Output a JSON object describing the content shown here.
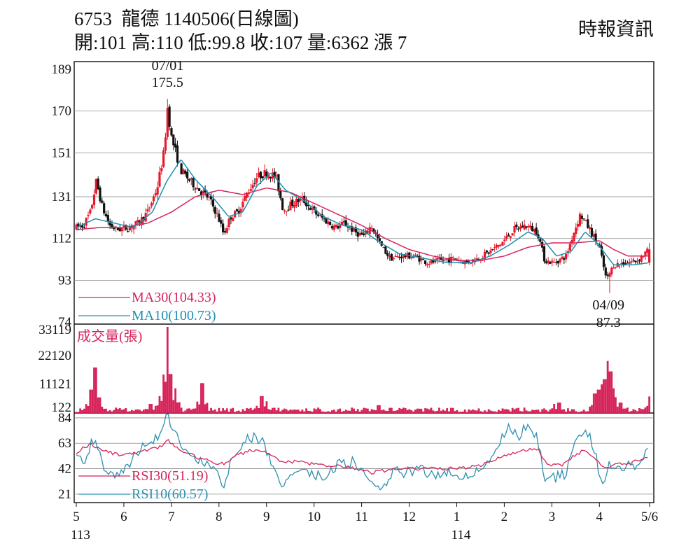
{
  "header": {
    "code": "6753",
    "name": "龍德",
    "date": "1140506",
    "chart_kind": "(日線圖)",
    "source": "時報資訊",
    "stats": [
      {
        "label": "開",
        "value": "101"
      },
      {
        "label": "高",
        "value": "110"
      },
      {
        "label": "低",
        "value": "99.8"
      },
      {
        "label": "收",
        "value": "107"
      },
      {
        "label": "量",
        "value": "6362"
      },
      {
        "label": "漲",
        "value": "7"
      }
    ]
  },
  "colors": {
    "up": "#e8192c",
    "down": "#111111",
    "ma30": "#d6245a",
    "ma10": "#1e90b4",
    "volume": "#d6245a",
    "rsi30": "#d6245a",
    "rsi10": "#2c8fb0",
    "grid": "#8a8a8a"
  },
  "chart_data": [
    {
      "type": "candlestick",
      "name": "price",
      "ylim": [
        74,
        189
      ],
      "yticks": [
        189,
        170,
        151,
        131,
        112,
        93,
        74
      ],
      "grid": true,
      "legend": [
        {
          "key": "ma30",
          "label": "MA30(104.33)"
        },
        {
          "key": "ma10",
          "label": "MA10(100.73)"
        }
      ],
      "annotations": [
        {
          "date_label": "07/01",
          "value_label": "175.5",
          "month_index": 1.92,
          "value": 175.5
        },
        {
          "date_label": "04/09",
          "value_label": "87.3",
          "month_index": 11.22,
          "value": 87.3
        }
      ],
      "last_bar": {
        "open": 101,
        "high": 110,
        "low": 99.8,
        "close": 107
      },
      "price_path": [
        [
          0.0,
          117
        ],
        [
          0.15,
          118
        ],
        [
          0.3,
          124
        ],
        [
          0.42,
          138
        ],
        [
          0.55,
          126
        ],
        [
          0.7,
          118
        ],
        [
          0.85,
          116
        ],
        [
          1.1,
          117
        ],
        [
          1.3,
          119
        ],
        [
          1.5,
          124
        ],
        [
          1.7,
          135
        ],
        [
          1.85,
          152
        ],
        [
          1.92,
          172
        ],
        [
          2.0,
          158
        ],
        [
          2.2,
          143
        ],
        [
          2.4,
          138
        ],
        [
          2.6,
          134
        ],
        [
          2.8,
          130
        ],
        [
          2.98,
          122
        ],
        [
          3.1,
          114
        ],
        [
          3.25,
          122
        ],
        [
          3.4,
          124
        ],
        [
          3.6,
          133
        ],
        [
          3.8,
          140
        ],
        [
          4.0,
          142
        ],
        [
          4.2,
          140
        ],
        [
          4.35,
          125
        ],
        [
          4.55,
          128
        ],
        [
          4.75,
          130
        ],
        [
          5.0,
          124
        ],
        [
          5.25,
          120
        ],
        [
          5.45,
          117
        ],
        [
          5.65,
          119
        ],
        [
          5.85,
          115
        ],
        [
          6.05,
          113
        ],
        [
          6.2,
          118
        ],
        [
          6.4,
          109
        ],
        [
          6.6,
          103
        ],
        [
          6.85,
          104
        ],
        [
          7.1,
          104
        ],
        [
          7.4,
          101
        ],
        [
          7.7,
          102
        ],
        [
          8.0,
          103
        ],
        [
          8.2,
          101
        ],
        [
          8.45,
          103
        ],
        [
          8.7,
          106
        ],
        [
          8.95,
          110
        ],
        [
          9.2,
          116
        ],
        [
          9.45,
          118
        ],
        [
          9.7,
          115
        ],
        [
          9.85,
          102
        ],
        [
          10.05,
          101
        ],
        [
          10.3,
          104
        ],
        [
          10.45,
          114
        ],
        [
          10.6,
          123
        ],
        [
          10.8,
          116
        ],
        [
          11.0,
          108
        ],
        [
          11.15,
          93
        ],
        [
          11.3,
          100
        ],
        [
          11.55,
          101
        ],
        [
          11.8,
          102
        ],
        [
          12.05,
          107
        ]
      ],
      "ma10_path": [
        [
          0.0,
          117
        ],
        [
          0.4,
          121
        ],
        [
          0.8,
          119
        ],
        [
          1.2,
          117
        ],
        [
          1.6,
          124
        ],
        [
          1.9,
          138
        ],
        [
          2.2,
          148
        ],
        [
          2.5,
          139
        ],
        [
          2.9,
          130
        ],
        [
          3.2,
          122
        ],
        [
          3.5,
          124
        ],
        [
          3.8,
          136
        ],
        [
          4.1,
          142
        ],
        [
          4.4,
          134
        ],
        [
          4.8,
          129
        ],
        [
          5.2,
          122
        ],
        [
          5.6,
          118
        ],
        [
          6.0,
          116
        ],
        [
          6.4,
          110
        ],
        [
          6.8,
          105
        ],
        [
          7.3,
          103
        ],
        [
          7.8,
          101
        ],
        [
          8.3,
          101
        ],
        [
          8.7,
          104
        ],
        [
          9.1,
          109
        ],
        [
          9.5,
          115
        ],
        [
          9.8,
          112
        ],
        [
          10.1,
          104
        ],
        [
          10.4,
          106
        ],
        [
          10.7,
          115
        ],
        [
          10.95,
          110
        ],
        [
          11.3,
          100
        ],
        [
          11.7,
          100
        ],
        [
          12.05,
          101
        ]
      ],
      "ma30_path": [
        [
          0.0,
          116
        ],
        [
          0.5,
          117
        ],
        [
          1.0,
          117
        ],
        [
          1.5,
          119
        ],
        [
          2.0,
          124
        ],
        [
          2.5,
          131
        ],
        [
          3.0,
          134
        ],
        [
          3.5,
          132
        ],
        [
          4.0,
          135
        ],
        [
          4.5,
          133
        ],
        [
          5.0,
          128
        ],
        [
          5.5,
          123
        ],
        [
          6.0,
          118
        ],
        [
          6.5,
          112
        ],
        [
          7.0,
          107
        ],
        [
          7.5,
          104
        ],
        [
          8.0,
          102
        ],
        [
          8.5,
          102
        ],
        [
          9.0,
          104
        ],
        [
          9.5,
          108
        ],
        [
          10.0,
          110
        ],
        [
          10.5,
          110
        ],
        [
          11.0,
          111
        ],
        [
          11.3,
          107
        ],
        [
          11.6,
          104
        ],
        [
          12.05,
          104
        ]
      ]
    },
    {
      "type": "bar",
      "name": "volume",
      "title": "成交量(張)",
      "ylim": [
        0,
        33119
      ],
      "yticks": [
        33119,
        22120,
        11121,
        122
      ],
      "spikes": [
        [
          0.4,
          17500
        ],
        [
          0.32,
          9000
        ],
        [
          0.48,
          6000
        ],
        [
          1.55,
          3500
        ],
        [
          1.75,
          6500
        ],
        [
          1.85,
          12000
        ],
        [
          1.92,
          33119
        ],
        [
          1.99,
          15000
        ],
        [
          2.08,
          9500
        ],
        [
          2.65,
          11500
        ],
        [
          3.9,
          6500
        ],
        [
          4.0,
          4500
        ],
        [
          6.35,
          3000
        ],
        [
          6.6,
          2000
        ],
        [
          10.05,
          3500
        ],
        [
          10.15,
          4000
        ],
        [
          10.9,
          7500
        ],
        [
          10.98,
          9000
        ],
        [
          11.05,
          11000
        ],
        [
          11.12,
          13000
        ],
        [
          11.18,
          20000
        ],
        [
          11.24,
          16000
        ],
        [
          11.3,
          9500
        ],
        [
          11.45,
          4000
        ],
        [
          12.05,
          6362
        ]
      ]
    },
    {
      "type": "line",
      "name": "rsi",
      "ylim": [
        14,
        88
      ],
      "yticks": [
        84,
        63,
        42,
        21
      ],
      "legend": [
        {
          "key": "rsi30",
          "label": "RSI30(51.19)"
        },
        {
          "key": "rsi10",
          "label": "RSI10(60.57)"
        }
      ],
      "rsi10_path": [
        [
          0.0,
          58
        ],
        [
          0.15,
          48
        ],
        [
          0.4,
          70
        ],
        [
          0.55,
          45
        ],
        [
          0.8,
          38
        ],
        [
          1.1,
          45
        ],
        [
          1.4,
          62
        ],
        [
          1.7,
          68
        ],
        [
          1.92,
          86
        ],
        [
          2.1,
          68
        ],
        [
          2.4,
          55
        ],
        [
          2.7,
          45
        ],
        [
          3.0,
          40
        ],
        [
          3.1,
          24
        ],
        [
          3.3,
          55
        ],
        [
          3.6,
          68
        ],
        [
          3.9,
          66
        ],
        [
          4.1,
          46
        ],
        [
          4.3,
          28
        ],
        [
          4.6,
          42
        ],
        [
          4.9,
          40
        ],
        [
          5.2,
          34
        ],
        [
          5.5,
          45
        ],
        [
          5.8,
          48
        ],
        [
          6.1,
          36
        ],
        [
          6.4,
          24
        ],
        [
          6.7,
          40
        ],
        [
          6.9,
          38
        ],
        [
          7.2,
          42
        ],
        [
          7.5,
          36
        ],
        [
          7.8,
          40
        ],
        [
          8.1,
          36
        ],
        [
          8.4,
          40
        ],
        [
          8.7,
          48
        ],
        [
          8.9,
          66
        ],
        [
          9.1,
          76
        ],
        [
          9.3,
          68
        ],
        [
          9.5,
          80
        ],
        [
          9.7,
          68
        ],
        [
          9.85,
          35
        ],
        [
          10.0,
          34
        ],
        [
          10.3,
          38
        ],
        [
          10.5,
          65
        ],
        [
          10.7,
          76
        ],
        [
          10.9,
          58
        ],
        [
          11.05,
          25
        ],
        [
          11.2,
          45
        ],
        [
          11.5,
          44
        ],
        [
          11.8,
          46
        ],
        [
          12.05,
          60.57
        ]
      ],
      "rsi30_path": [
        [
          0.0,
          56
        ],
        [
          0.3,
          62
        ],
        [
          0.6,
          56
        ],
        [
          0.9,
          54
        ],
        [
          1.2,
          55
        ],
        [
          1.5,
          58
        ],
        [
          1.8,
          60
        ],
        [
          1.92,
          66
        ],
        [
          2.2,
          57
        ],
        [
          2.5,
          52
        ],
        [
          2.8,
          48
        ],
        [
          3.1,
          46
        ],
        [
          3.4,
          54
        ],
        [
          3.7,
          57
        ],
        [
          4.0,
          56
        ],
        [
          4.3,
          48
        ],
        [
          4.6,
          48
        ],
        [
          5.0,
          46
        ],
        [
          5.4,
          44
        ],
        [
          5.8,
          43
        ],
        [
          6.2,
          39
        ],
        [
          6.6,
          41
        ],
        [
          7.0,
          42
        ],
        [
          7.4,
          42
        ],
        [
          7.8,
          42
        ],
        [
          8.2,
          43
        ],
        [
          8.6,
          46
        ],
        [
          9.0,
          53
        ],
        [
          9.4,
          57
        ],
        [
          9.7,
          59
        ],
        [
          9.9,
          46
        ],
        [
          10.2,
          45
        ],
        [
          10.5,
          54
        ],
        [
          10.7,
          57
        ],
        [
          10.9,
          50
        ],
        [
          11.1,
          43
        ],
        [
          11.4,
          46
        ],
        [
          11.8,
          48
        ],
        [
          12.05,
          51.19
        ]
      ]
    }
  ],
  "x_axis": {
    "labels": [
      {
        "text": "5",
        "sub": "113",
        "pos": 0
      },
      {
        "text": "6",
        "pos": 1
      },
      {
        "text": "7",
        "pos": 2
      },
      {
        "text": "8",
        "pos": 3
      },
      {
        "text": "9",
        "pos": 4
      },
      {
        "text": "10",
        "pos": 5
      },
      {
        "text": "11",
        "pos": 6
      },
      {
        "text": "12",
        "pos": 7
      },
      {
        "text": "1",
        "sub": "114",
        "pos": 8
      },
      {
        "text": "2",
        "pos": 9
      },
      {
        "text": "3",
        "pos": 10
      },
      {
        "text": "4",
        "pos": 11
      },
      {
        "text": "5/6",
        "pos": 12
      }
    ]
  }
}
